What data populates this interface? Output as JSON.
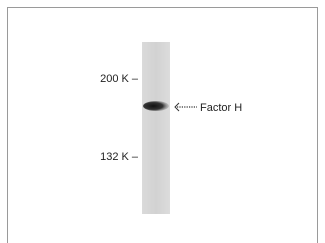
{
  "markers": [
    "200 K –",
    "132 K –"
  ],
  "band_label": "Factor H"
}
